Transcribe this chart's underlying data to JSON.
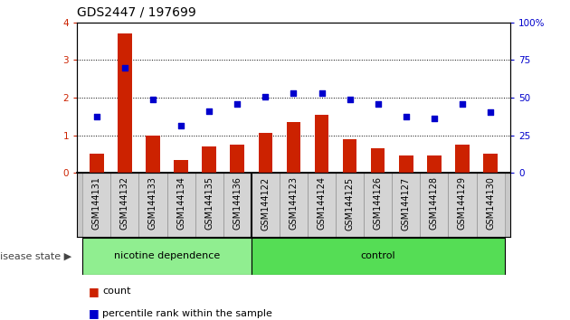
{
  "title": "GDS2447 / 197699",
  "samples": [
    "GSM144131",
    "GSM144132",
    "GSM144133",
    "GSM144134",
    "GSM144135",
    "GSM144136",
    "GSM144122",
    "GSM144123",
    "GSM144124",
    "GSM144125",
    "GSM144126",
    "GSM144127",
    "GSM144128",
    "GSM144129",
    "GSM144130"
  ],
  "counts": [
    0.5,
    3.7,
    1.0,
    0.35,
    0.7,
    0.75,
    1.05,
    1.35,
    1.55,
    0.9,
    0.65,
    0.45,
    0.45,
    0.75,
    0.52
  ],
  "percentile_raw": [
    1.5,
    2.8,
    1.95,
    1.25,
    1.65,
    1.82,
    2.02,
    2.12,
    2.12,
    1.95,
    1.82,
    1.5,
    1.45,
    1.82,
    1.62
  ],
  "bar_color": "#cc2200",
  "dot_color": "#0000cc",
  "nicotine_n": 6,
  "nicotine_label": "nicotine dependence",
  "control_label": "control",
  "disease_state_label": "disease state",
  "legend_count": "count",
  "legend_percentile": "percentile rank within the sample",
  "ylim_left": [
    0,
    4
  ],
  "ylim_right": [
    0,
    100
  ],
  "yticks_left": [
    0,
    1,
    2,
    3,
    4
  ],
  "yticks_right": [
    0,
    25,
    50,
    75,
    100
  ],
  "ytick_labels_right": [
    "0",
    "25",
    "50",
    "75",
    "100%"
  ],
  "background_color": "#ffffff",
  "bar_width": 0.5,
  "nicotine_bg": "#90ee90",
  "control_bg": "#55dd55",
  "title_fontsize": 10,
  "tick_fontsize": 7.5,
  "label_fontsize": 7
}
